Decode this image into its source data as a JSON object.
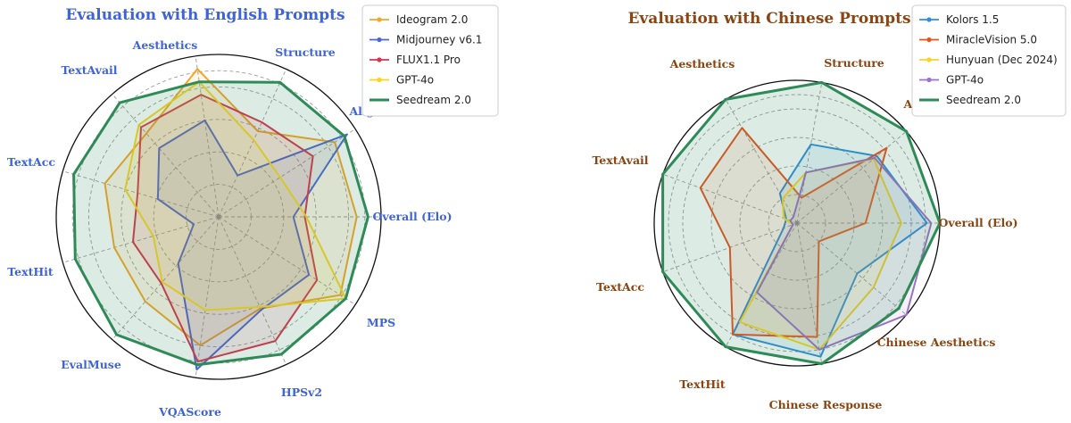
{
  "chart_data": [
    {
      "type": "radar",
      "title": "Evaluation with English Prompts",
      "title_color": "#3f63d8",
      "label_color": "#3f63d8",
      "axes": [
        "Overall (Elo)",
        "MPS",
        "HPSv2",
        "VQAScore",
        "EvalMuse",
        "TextHit",
        "TextAcc",
        "TextAvail",
        "Aesthetics",
        "Structure",
        "Alignment"
      ],
      "rlim": [
        0,
        1
      ],
      "grid": true,
      "legend": "top-right",
      "series": [
        {
          "name": "Ideogram 2.0",
          "color": "#f5a623",
          "values": [
            0.85,
            0.85,
            0.58,
            0.92,
            0.68,
            0.73,
            0.67,
            0.69,
            0.8,
            0.62,
            0.89
          ]
        },
        {
          "name": "Midjourney v6.1",
          "color": "#4a67d6",
          "values": [
            0.46,
            0.94,
            0.28,
            0.6,
            0.56,
            0.39,
            0.16,
            0.38,
            0.95,
            0.63,
            0.66
          ]
        },
        {
          "name": "FLUX1.1 Pro",
          "color": "#d8344c",
          "values": [
            0.53,
            0.69,
            0.64,
            0.76,
            0.73,
            0.52,
            0.55,
            0.54,
            0.9,
            0.84,
            0.72
          ]
        },
        {
          "name": "GPT-4o",
          "color": "#f9d423",
          "values": [
            0.54,
            0.45,
            0.52,
            0.84,
            0.75,
            0.6,
            0.42,
            0.53,
            0.58,
            0.61,
            0.93
          ]
        },
        {
          "name": "Seedream 2.0",
          "color": "#2e8b57",
          "values": [
            0.92,
            0.92,
            0.91,
            0.84,
            0.93,
            0.93,
            0.92,
            0.96,
            0.92,
            0.93,
            0.93
          ]
        }
      ]
    },
    {
      "type": "radar",
      "title": "Evaluation with Chinese Prompts",
      "title_color": "#8b4513",
      "label_color": "#8b4513",
      "axes": [
        "Overall (Elo)",
        "Chinese Aesthetics",
        "Chinese Response",
        "TextHit",
        "TextAcc",
        "TextAvail",
        "Aesthetics",
        "Structure",
        "Alignment"
      ],
      "rlim": [
        0,
        1
      ],
      "grid": true,
      "legend": "top-right",
      "series": [
        {
          "name": "Kolors 1.5",
          "color": "#2f8fdf",
          "values": [
            0.91,
            0.73,
            0.56,
            0.24,
            0.08,
            0.1,
            0.9,
            0.95,
            0.55
          ]
        },
        {
          "name": "MiracleVision 5.0",
          "color": "#e8541c",
          "values": [
            0.48,
            0.82,
            0.18,
            0.77,
            0.72,
            0.5,
            0.9,
            0.81,
            0.2
          ]
        },
        {
          "name": "Hunyuan (Dec 2024)",
          "color": "#f9d423",
          "values": [
            0.73,
            0.7,
            0.36,
            0.2,
            0.1,
            0.03,
            0.8,
            0.9,
            0.7
          ]
        },
        {
          "name": "GPT-4o",
          "color": "#9b72c9",
          "values": [
            0.94,
            0.71,
            0.36,
            0.05,
            0.05,
            0.03,
            0.56,
            0.9,
            1.0
          ]
        },
        {
          "name": "Seedream 2.0",
          "color": "#2e8b57",
          "values": [
            1.0,
            1.0,
            1.0,
            1.0,
            1.0,
            1.0,
            1.0,
            1.0,
            0.93
          ]
        }
      ]
    }
  ]
}
